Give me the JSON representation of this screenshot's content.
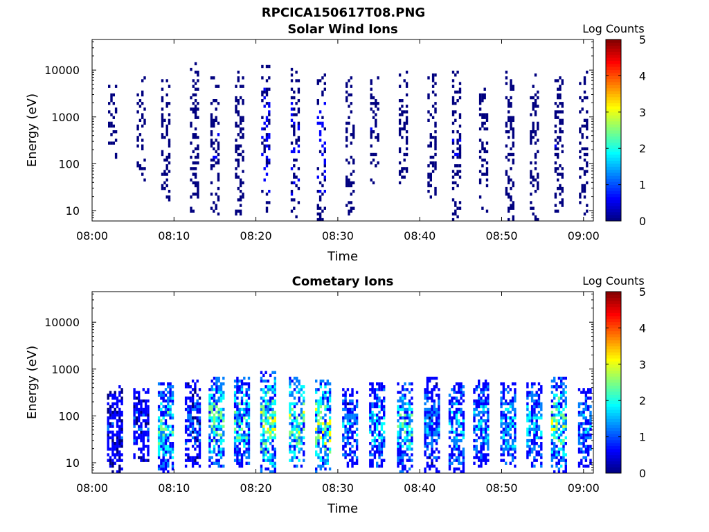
{
  "figure_title": "RPCICA150617T08.PNG",
  "colormap": [
    "#00007f",
    "#0000ff",
    "#007fff",
    "#00ffff",
    "#7fff7f",
    "#ffff00",
    "#ff7f00",
    "#ff0000",
    "#7f0000"
  ],
  "chart_data": [
    {
      "type": "heatmap",
      "title": "Solar Wind Ions",
      "xlabel": "Time",
      "ylabel": "Energy (eV)",
      "x_ticks": [
        "08:00",
        "08:10",
        "08:20",
        "08:30",
        "08:40",
        "08:50",
        "09:00"
      ],
      "x_tick_minutes": [
        0,
        10,
        20,
        30,
        40,
        50,
        60
      ],
      "xlim_minutes": [
        0,
        61.2
      ],
      "y_scale": "log",
      "y_ticks": [
        "10",
        "100",
        "1000",
        "10000"
      ],
      "y_tick_values": [
        10,
        100,
        1000,
        10000
      ],
      "ylim": [
        6,
        45000
      ],
      "colorbar": {
        "label": "Log Counts",
        "ticks": [
          "0",
          "1",
          "2",
          "3",
          "4",
          "5"
        ],
        "range": [
          0,
          5
        ]
      },
      "bursts": [
        {
          "t": 2.5,
          "e": [
            120,
            5000
          ],
          "v": 0.1
        },
        {
          "t": 6.0,
          "e": [
            30,
            8000
          ],
          "v": 0.1
        },
        {
          "t": 9.0,
          "e": [
            15,
            6000
          ],
          "v": 0.2
        },
        {
          "t": 12.5,
          "e": [
            8,
            14000
          ],
          "v": 0.15
        },
        {
          "t": 15.0,
          "e": [
            8,
            9000
          ],
          "v": 0.2
        },
        {
          "t": 18.0,
          "e": [
            8,
            10000
          ],
          "v": 0.1
        },
        {
          "t": 21.2,
          "e": [
            6,
            13000
          ],
          "v": 0.35
        },
        {
          "t": 24.8,
          "e": [
            6,
            11000
          ],
          "v": 0.3
        },
        {
          "t": 28.0,
          "e": [
            6,
            8000
          ],
          "v": 0.35
        },
        {
          "t": 31.5,
          "e": [
            8,
            7000
          ],
          "v": 0.15
        },
        {
          "t": 34.5,
          "e": [
            30,
            8500
          ],
          "v": 0.2
        },
        {
          "t": 38.0,
          "e": [
            30,
            9500
          ],
          "v": 0.15
        },
        {
          "t": 41.5,
          "e": [
            15,
            9000
          ],
          "v": 0.15
        },
        {
          "t": 44.5,
          "e": [
            6,
            9500
          ],
          "v": 0.2
        },
        {
          "t": 47.8,
          "e": [
            8,
            5000
          ],
          "v": 0.1
        },
        {
          "t": 51.0,
          "e": [
            6,
            9500
          ],
          "v": 0.1
        },
        {
          "t": 54.0,
          "e": [
            6,
            9000
          ],
          "v": 0.15
        },
        {
          "t": 57.0,
          "e": [
            8,
            7000
          ],
          "v": 0.2
        },
        {
          "t": 60.0,
          "e": [
            8,
            10000
          ],
          "v": 0.1
        }
      ]
    },
    {
      "type": "heatmap",
      "title": "Cometary Ions",
      "xlabel": "Time",
      "ylabel": "Energy (eV)",
      "x_ticks": [
        "08:00",
        "08:10",
        "08:20",
        "08:30",
        "08:40",
        "08:50",
        "09:00"
      ],
      "x_tick_minutes": [
        0,
        10,
        20,
        30,
        40,
        50,
        60
      ],
      "xlim_minutes": [
        0,
        61.2
      ],
      "y_scale": "log",
      "y_ticks": [
        "10",
        "100",
        "1000",
        "10000"
      ],
      "y_tick_values": [
        10,
        100,
        1000,
        10000
      ],
      "ylim": [
        6,
        45000
      ],
      "colorbar": {
        "label": "Log Counts",
        "ticks": [
          "0",
          "1",
          "2",
          "3",
          "4",
          "5"
        ],
        "range": [
          0,
          5
        ]
      },
      "bursts": [
        {
          "t": 2.8,
          "e": [
            6,
            450
          ],
          "v": 0.6
        },
        {
          "t": 6.0,
          "e": [
            10,
            400
          ],
          "v": 0.7
        },
        {
          "t": 9.0,
          "e": [
            6,
            500
          ],
          "v": 1.5
        },
        {
          "t": 12.3,
          "e": [
            8,
            600
          ],
          "v": 0.8
        },
        {
          "t": 15.2,
          "e": [
            8,
            700
          ],
          "v": 1.7
        },
        {
          "t": 18.3,
          "e": [
            8,
            700
          ],
          "v": 1.6
        },
        {
          "t": 21.5,
          "e": [
            6,
            900
          ],
          "v": 2.0
        },
        {
          "t": 25.0,
          "e": [
            8,
            650
          ],
          "v": 1.9
        },
        {
          "t": 28.2,
          "e": [
            6,
            600
          ],
          "v": 2.0
        },
        {
          "t": 31.5,
          "e": [
            8,
            400
          ],
          "v": 1.0
        },
        {
          "t": 34.8,
          "e": [
            8,
            500
          ],
          "v": 1.3
        },
        {
          "t": 38.2,
          "e": [
            6,
            550
          ],
          "v": 1.5
        },
        {
          "t": 41.5,
          "e": [
            6,
            650
          ],
          "v": 1.0
        },
        {
          "t": 44.5,
          "e": [
            6,
            550
          ],
          "v": 1.2
        },
        {
          "t": 47.5,
          "e": [
            8,
            600
          ],
          "v": 1.2
        },
        {
          "t": 50.8,
          "e": [
            8,
            500
          ],
          "v": 1.3
        },
        {
          "t": 54.0,
          "e": [
            8,
            550
          ],
          "v": 1.3
        },
        {
          "t": 57.0,
          "e": [
            6,
            650
          ],
          "v": 1.8
        },
        {
          "t": 60.3,
          "e": [
            8,
            400
          ],
          "v": 1.1
        }
      ]
    }
  ]
}
